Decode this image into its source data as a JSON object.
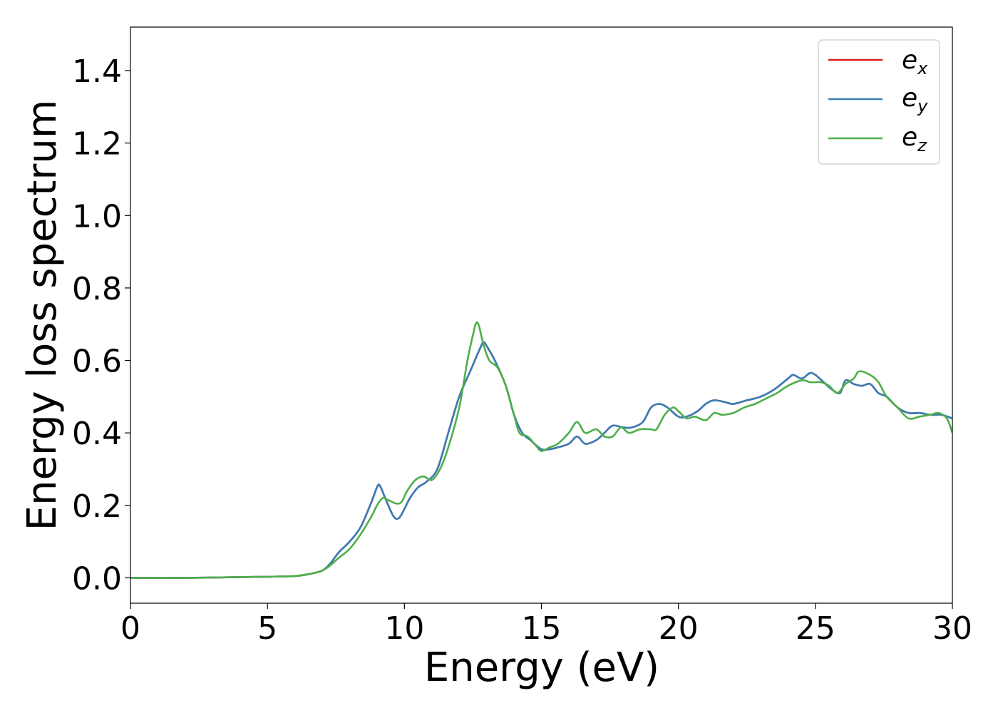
{
  "chart_data": {
    "type": "line",
    "title": "",
    "xlabel": "Energy (eV)",
    "ylabel": "Energy loss spectrum",
    "xlim": [
      0,
      30
    ],
    "ylim": [
      -0.07,
      1.52
    ],
    "xticks": [
      0,
      5,
      10,
      15,
      20,
      25,
      30
    ],
    "xtick_labels": [
      "0",
      "5",
      "10",
      "15",
      "20",
      "25",
      "30"
    ],
    "yticks": [
      0.0,
      0.2,
      0.4,
      0.6,
      0.8,
      1.0,
      1.2,
      1.4
    ],
    "ytick_labels": [
      "0.0",
      "0.2",
      "0.4",
      "0.6",
      "0.8",
      "1.0",
      "1.2",
      "1.4"
    ],
    "grid": false,
    "legend_position": "top-right",
    "series": [
      {
        "name": "e_x",
        "legend_main": "e",
        "legend_sub": "x",
        "color": "#e41a1c",
        "x": [
          0,
          2,
          4,
          5,
          6,
          6.5,
          7,
          7.3,
          7.6,
          8,
          8.4,
          8.8,
          9.0,
          9.1,
          9.3,
          9.6,
          9.8,
          10.0,
          10.2,
          10.5,
          10.8,
          11.2,
          11.6,
          12.0,
          12.4,
          12.8,
          12.9,
          13.0,
          13.3,
          13.7,
          14.0,
          14.3,
          14.6,
          15.0,
          15.3,
          15.6,
          16.0,
          16.3,
          16.6,
          17.0,
          17.3,
          17.6,
          18.0,
          18.3,
          18.7,
          19.0,
          19.3,
          19.6,
          20.0,
          20.3,
          20.7,
          21.0,
          21.3,
          21.7,
          22.0,
          22.5,
          23.0,
          23.5,
          24.0,
          24.2,
          24.5,
          24.8,
          25.0,
          25.3,
          25.6,
          25.9,
          26.1,
          26.4,
          26.7,
          27.0,
          27.3,
          27.6,
          28.0,
          28.4,
          28.8,
          29.2,
          29.6,
          30
        ],
        "y": [
          0.0,
          0.0,
          0.002,
          0.003,
          0.005,
          0.01,
          0.02,
          0.04,
          0.07,
          0.1,
          0.14,
          0.21,
          0.25,
          0.255,
          0.22,
          0.17,
          0.165,
          0.19,
          0.22,
          0.25,
          0.265,
          0.3,
          0.4,
          0.5,
          0.57,
          0.64,
          0.65,
          0.64,
          0.6,
          0.53,
          0.45,
          0.4,
          0.38,
          0.355,
          0.355,
          0.36,
          0.37,
          0.39,
          0.37,
          0.38,
          0.4,
          0.42,
          0.415,
          0.415,
          0.43,
          0.47,
          0.48,
          0.47,
          0.445,
          0.445,
          0.46,
          0.48,
          0.49,
          0.485,
          0.48,
          0.49,
          0.5,
          0.52,
          0.55,
          0.56,
          0.55,
          0.565,
          0.56,
          0.54,
          0.52,
          0.51,
          0.545,
          0.535,
          0.53,
          0.535,
          0.51,
          0.5,
          0.47,
          0.455,
          0.455,
          0.45,
          0.45,
          0.44
        ]
      },
      {
        "name": "e_y",
        "legend_main": "e",
        "legend_sub": "y",
        "color": "#377eb8",
        "x": [
          0,
          2,
          4,
          5,
          6,
          6.5,
          7,
          7.3,
          7.6,
          8,
          8.4,
          8.8,
          9.0,
          9.1,
          9.3,
          9.6,
          9.8,
          10.0,
          10.2,
          10.5,
          10.8,
          11.2,
          11.6,
          12.0,
          12.4,
          12.8,
          12.9,
          13.0,
          13.3,
          13.7,
          14.0,
          14.3,
          14.6,
          15.0,
          15.3,
          15.6,
          16.0,
          16.3,
          16.6,
          17.0,
          17.3,
          17.6,
          18.0,
          18.3,
          18.7,
          19.0,
          19.3,
          19.6,
          20.0,
          20.3,
          20.7,
          21.0,
          21.3,
          21.7,
          22.0,
          22.5,
          23.0,
          23.5,
          24.0,
          24.2,
          24.5,
          24.8,
          25.0,
          25.3,
          25.6,
          25.9,
          26.1,
          26.4,
          26.7,
          27.0,
          27.3,
          27.6,
          28.0,
          28.4,
          28.8,
          29.2,
          29.6,
          30
        ],
        "y": [
          0.0,
          0.0,
          0.002,
          0.003,
          0.005,
          0.01,
          0.02,
          0.04,
          0.07,
          0.1,
          0.14,
          0.21,
          0.25,
          0.255,
          0.22,
          0.17,
          0.165,
          0.19,
          0.22,
          0.25,
          0.265,
          0.3,
          0.4,
          0.5,
          0.57,
          0.64,
          0.65,
          0.64,
          0.6,
          0.53,
          0.45,
          0.4,
          0.38,
          0.355,
          0.355,
          0.36,
          0.37,
          0.39,
          0.37,
          0.38,
          0.4,
          0.42,
          0.415,
          0.415,
          0.43,
          0.47,
          0.48,
          0.47,
          0.445,
          0.445,
          0.46,
          0.48,
          0.49,
          0.485,
          0.48,
          0.49,
          0.5,
          0.52,
          0.55,
          0.56,
          0.55,
          0.565,
          0.56,
          0.54,
          0.52,
          0.51,
          0.545,
          0.535,
          0.53,
          0.535,
          0.51,
          0.5,
          0.47,
          0.455,
          0.455,
          0.45,
          0.45,
          0.44
        ]
      },
      {
        "name": "e_z",
        "legend_main": "e",
        "legend_sub": "z",
        "color": "#4daf4a",
        "x": [
          0,
          2,
          4,
          5,
          6,
          6.5,
          7,
          7.3,
          7.6,
          8,
          8.4,
          8.8,
          9.0,
          9.2,
          9.4,
          9.7,
          9.9,
          10.1,
          10.4,
          10.7,
          11.0,
          11.3,
          11.6,
          12.0,
          12.3,
          12.5,
          12.6,
          12.7,
          12.9,
          13.1,
          13.4,
          13.7,
          14.0,
          14.2,
          14.5,
          14.8,
          15.0,
          15.3,
          15.6,
          16.0,
          16.3,
          16.6,
          17.0,
          17.3,
          17.6,
          17.9,
          18.2,
          18.6,
          19.0,
          19.2,
          19.5,
          19.8,
          20.0,
          20.3,
          20.6,
          21.0,
          21.3,
          21.6,
          22.0,
          22.4,
          22.8,
          23.2,
          23.6,
          24.0,
          24.5,
          24.8,
          25.0,
          25.2,
          25.5,
          25.8,
          26.1,
          26.4,
          26.6,
          27.0,
          27.3,
          27.6,
          28.0,
          28.4,
          28.8,
          29.2,
          29.5,
          29.8,
          30
        ],
        "y": [
          0.0,
          0.0,
          0.002,
          0.003,
          0.005,
          0.01,
          0.02,
          0.035,
          0.055,
          0.08,
          0.12,
          0.17,
          0.2,
          0.22,
          0.215,
          0.205,
          0.21,
          0.24,
          0.27,
          0.28,
          0.27,
          0.3,
          0.36,
          0.47,
          0.6,
          0.67,
          0.7,
          0.7,
          0.64,
          0.6,
          0.58,
          0.53,
          0.45,
          0.4,
          0.39,
          0.365,
          0.35,
          0.36,
          0.37,
          0.4,
          0.43,
          0.4,
          0.41,
          0.39,
          0.39,
          0.415,
          0.4,
          0.41,
          0.41,
          0.41,
          0.45,
          0.47,
          0.46,
          0.44,
          0.445,
          0.435,
          0.455,
          0.45,
          0.455,
          0.47,
          0.48,
          0.495,
          0.51,
          0.53,
          0.545,
          0.54,
          0.54,
          0.54,
          0.53,
          0.51,
          0.535,
          0.55,
          0.57,
          0.56,
          0.54,
          0.5,
          0.47,
          0.44,
          0.445,
          0.45,
          0.455,
          0.44,
          0.4
        ]
      }
    ]
  }
}
